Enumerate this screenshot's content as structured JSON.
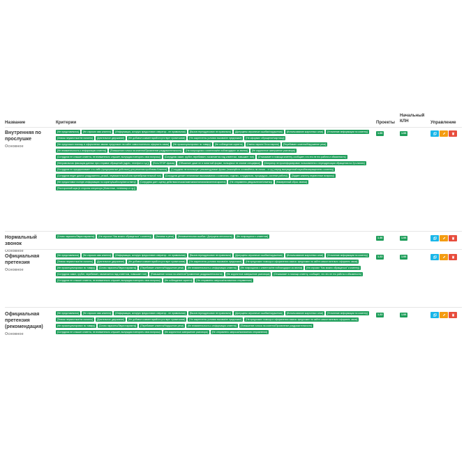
{
  "header": {
    "name": "Название",
    "criteria": "Критерии",
    "projects": "Проекты",
    "initial_kln_line1": "Начальный",
    "initial_kln_line2": "КЛН",
    "actions": "Управление"
  },
  "rows": [
    {
      "title_lines": [
        "Внутренняя по",
        "прослушке"
      ],
      "subtitle": "Основное",
      "projects": "1.06",
      "kln": "1.06",
      "tags": [
        "[Не представлялся]",
        "[Не спросил имя клиента]",
        "[Информация, которую предоставил оператор - не правильная]",
        "[Вызов переадресован не правильно]",
        "[Допущены серьезные ошибки/нарушения]",
        "[Использование жаргонных слов]",
        "[Уточнение информации по клиенту]",
        "[Значки неуместные/не понятно]",
        "[Длительное удержание]",
        "[Не добавил комментарий/отсутствует примечание]",
        "[Не закреплены условия вызова/не предложил]",
        "[Не оформил обращение/карточку]",
        "[Не предложил помощь в оформлении заказа: предложил на сайте самостоятельно оформить заказ]",
        "[Не проконсультировал по товару]",
        "[Не соблюдение скрипта]",
        "[Смена пароля/ Блок пароля]",
        "[Перебивает клиента/Нарушение речи]",
        "[Не внимательность к информации клиента]",
        "[Повышение голоса на клиента/Проявление раздражительности]",
        "[Не попрощался с клиентом/не поблагодарил за звонок]",
        "[Не корректное завершение разговора]",
        "[Сотрудник не слышит клиента, не внимательно слушает, вынуждая повторять свои вопросы]",
        "[Сотрудник хамит, грубит, перебивает, насмехается над клиентом, повышает тон]",
        "[Отказывает в помощи клиенту, сообщает, что это не его работа и обязанность]",
        "[Неправильная фиксация данных при отправке обращений (адрес, телефон и т.д.)]",
        "[Есть STOP-фразы]",
        "[Объясняет даже не в понятной форме, пользуясь/ не знание специфики]",
        "[Оператор не проинформировал пользователя о переадресации обращения на 2уч.линию]",
        "[Сотрудник не предпринимает что-либо (предпринятые действия) для решения проблемы Клиента]",
        "[Сотрудник не использует рекомендуемые фразы (пожалуйста оставайтесь на линии... и т.д.) перед вынужденной паузой/возвращением к клиенту]",
        "[Сотрудник ведет диалог раздраженно, резкий, неуважительный или пренебрежительный тон]",
        "[Сотрудник делает негативные высказывания о компании, отделах, сотрудниках, процедурах, системе работы]",
        "[Задает клиенту неуместные вопросы]",
        "[Не предоставил полную информацию по скрипту/шаблону/автоответу]",
        "[Сотрудник дает оценку действия/отказа/замечания/питания/клиента/скрипта]",
        "[Не отправлено уведомление/отметку]",
        "[Намеренный сброс звонка]",
        "[Посторонний шум (в стороны оператора (Животные, телевизор и т.д.)]"
      ]
    },
    {
      "title_lines": [
        "Нормальный звонок"
      ],
      "subtitle": "Основное",
      "projects": "1.46",
      "kln": "1.06",
      "tags": [
        "[Слово паразиты/Звуки паразиты]",
        "[Не спросил \"Как можно обращаться\" к клиенту]",
        "[Запинки в речи]",
        "[Незначительная ошибка / Допущена неточность]",
        "[Не попрощался с клиентом]"
      ]
    },
    {
      "title_lines": [
        "Официальная",
        "претензия"
      ],
      "subtitle": "Основное",
      "projects": "1.22",
      "kln": "1.06",
      "tags": [
        "[Не представлялся]",
        "[Не спросил имя клиента]",
        "[Информация, которую предоставил оператор - не правильная]",
        "[Вызов переадресован не правильно]",
        "[Допущены серьезные ошибки/нарушения]",
        "[Использование жаргонных слов]",
        "[Уточнение информации по клиенту]",
        "[Значки неуместные/не понятно]",
        "[Длительное удержание]",
        "[Не добавил комментарий/отсутствует примечание]",
        "[Не закреплены условия вызова/не предложил]",
        "[Не предложил помощь в оформлении заказа: предложил на сайте самостоятельно оформить заказ]",
        "[Не проконсультировал по товару]",
        "[Слово паразиты/Звуки паразиты]",
        "[Перебивает клиента/Нарушение речи]",
        "[Не внимательность к информации клиента]",
        "[Не попрощался с клиентом/не поблагодарил за звонок]",
        "[Не спросил \"Как можно обращаться\" к клиенту]",
        "[Сотрудник хамит, грубит, перебивает, насмехается над клиентом, повышает тон]",
        "[Повышение голоса на клиента/Проявление раздражительности]",
        "[Не корректное завершение разговора]",
        "[Отказывает в помощи клиенту, сообщает, что это не его работа и обязанность]",
        "[Сотрудник не слышит клиента, не внимательно слушает, вынуждая повторять свои вопросы]",
        "[Не соблюдение скрипта]",
        "[Не отправлено запроса/назначения отправления]"
      ]
    },
    {
      "title_lines": [
        "Официальная",
        "претензия",
        "(рекомендация)"
      ],
      "subtitle": "Основное",
      "projects": "1.22",
      "kln": "1.06",
      "tags": [
        "[Не представлялся]",
        "[Не спросил имя клиента]",
        "[Информация, которую предоставил оператор - не правильная]",
        "[Вызов переадресован не правильно]",
        "[Допущены серьезные ошибки/нарушения]",
        "[Использование жаргонных слов]",
        "[Уточнение информации по клиенту]",
        "[Значки неуместные/не понятно]",
        "[Длительное удержание]",
        "[Не добавил комментарий/отсутствует примечание]",
        "[Не закреплены условия вызова/не предложил]",
        "[Не предложил помощь в оформлении заказа: предложил на сайте самостоятельно оформить заказ]",
        "[Не проконсультировал по товару]",
        "[Слово паразиты/Звуки паразиты]",
        "[Перебивает клиента/Нарушение речи]",
        "[Не внимательность к информации клиента]",
        "[Повышение голоса на клиента/Проявление раздражительности]",
        "[Сотрудник не слышит клиента, не внимательно слушает, вынуждая повторять свои вопросы]",
        "[Не корректное завершение разговора]",
        "[Не отправлено запроса/назначения отправления]"
      ]
    }
  ]
}
